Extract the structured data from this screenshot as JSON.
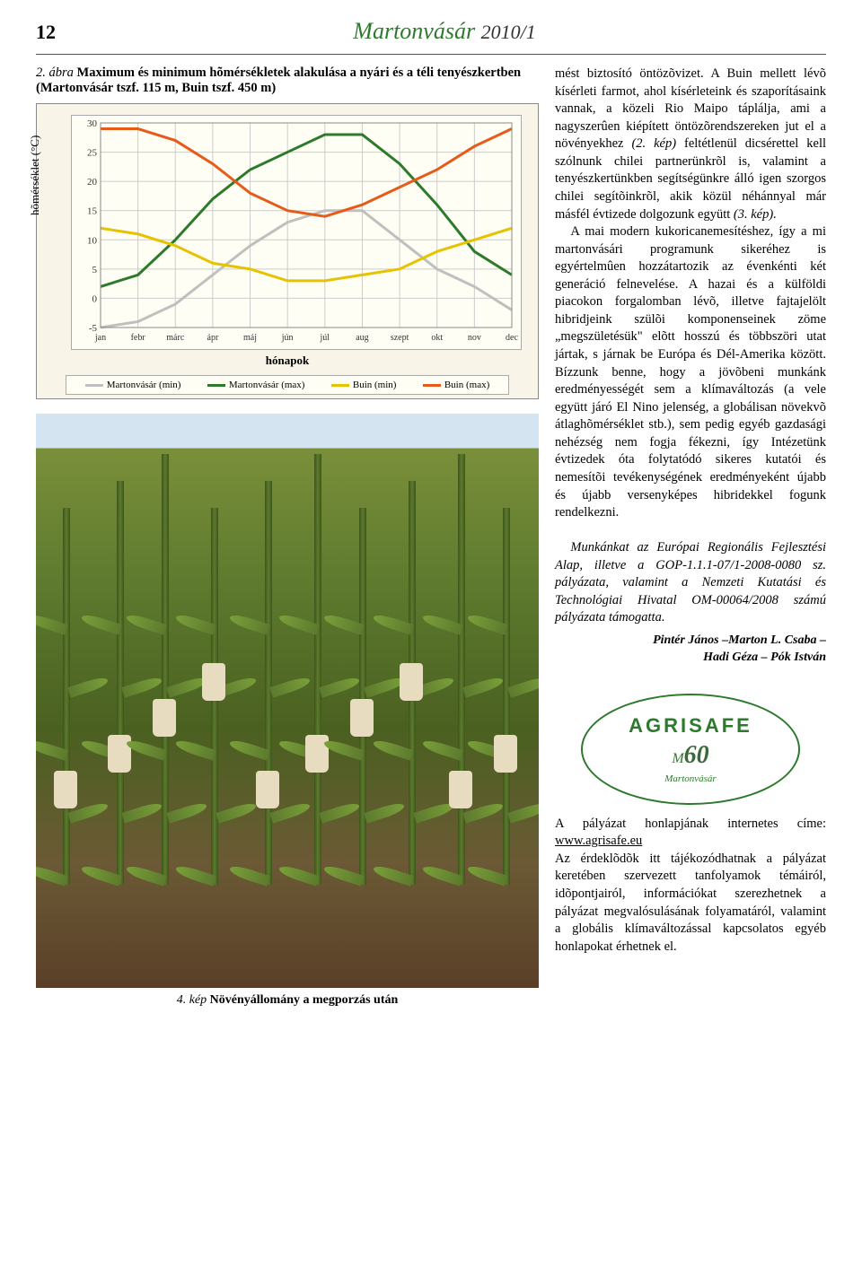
{
  "page_number": "12",
  "masthead": "Martonvásár",
  "masthead_year": "2010/1",
  "figure2": {
    "label_prefix": "2. ábra",
    "title_bold": "Maximum és minimum hõmérsékletek alakulása a nyári és a téli tenyészkertben (Martonvásár tszf. 115 m, Buin tszf. 450 m)",
    "ylabel": "hõmérséklet (°C)",
    "xlabel": "hónapok",
    "chart": {
      "type": "line",
      "background_color": "#f8f5e8",
      "plot_color": "#fffef4",
      "grid_color": "#cccccc",
      "ylim": [
        -5,
        30
      ],
      "ytick_step": 5,
      "yticks": [
        "-5",
        "0",
        "5",
        "10",
        "15",
        "20",
        "25",
        "30"
      ],
      "categories": [
        "jan",
        "febr",
        "márc",
        "ápr",
        "máj",
        "jún",
        "júl",
        "aug",
        "szept",
        "okt",
        "nov",
        "dec"
      ],
      "series": [
        {
          "name": "Martonvásár (min)",
          "color": "#bfbfbf",
          "width": 3,
          "values": [
            -5,
            -4,
            -1,
            4,
            9,
            13,
            15,
            15,
            10,
            5,
            2,
            -2
          ]
        },
        {
          "name": "Martonvásár (max)",
          "color": "#2d7a2d",
          "width": 3,
          "values": [
            2,
            4,
            10,
            17,
            22,
            25,
            28,
            28,
            23,
            16,
            8,
            4
          ]
        },
        {
          "name": "Buin (min)",
          "color": "#e6c200",
          "width": 3,
          "values": [
            12,
            11,
            9,
            6,
            5,
            3,
            3,
            4,
            5,
            8,
            10,
            12
          ]
        },
        {
          "name": "Buin (max)",
          "color": "#e65a1a",
          "width": 3,
          "values": [
            29,
            29,
            27,
            23,
            18,
            15,
            14,
            16,
            19,
            22,
            26,
            29
          ]
        }
      ],
      "title_fontsize": 14,
      "label_fontsize": 13
    }
  },
  "caption4": {
    "label": "4. kép",
    "text": "Növényállomány a megporzás után"
  },
  "body": {
    "p1": "mést biztosító öntözõvizet. A Buin mellett lévõ kísérleti farmot, ahol kísérleteink és szaporításaink vannak, a közeli Rio Maipo táplálja, ami a nagyszerûen kiépített öntözõrendszereken jut el a növényekhez ",
    "p1_ref": "(2. kép)",
    "p1b": " feltétlenül dicsérettel kell szólnunk chilei partnerünkrõl is, valamint a tenyészkertünkben segítségünkre álló igen szorgos chilei segítõinkrõl, akik közül néhánnyal már másfél évtizede dolgozunk együtt ",
    "p1_ref2": "(3. kép).",
    "p2": "A mai modern kukoricanemesítéshez, így a mi martonvásári programunk sikeréhez is egyértelmûen hozzátartozik az évenkénti két generáció felnevelése. A hazai és a külföldi piacokon forgalomban lévõ, illetve fajtajelölt hibridjeink szülõi komponenseinek zöme „megszületésük\" elõtt hosszú és többszöri utat jártak, s járnak be Európa és Dél-Amerika között. Bízzunk benne, hogy a jövõbeni munkánk eredményességét sem a klímaváltozás (a vele együtt járó El Nino jelenség, a globálisan növekvõ átlaghõmérséklet stb.), sem pedig egyéb gazdasági nehézség nem fogja fékezni, így Intézetünk évtizedek óta folytatódó sikeres kutatói és nemesítõi tevékenységének eredményeként újabb és újabb versenyképes hibridekkel fogunk rendelkezni.",
    "ack": "Munkánkat az Európai Regionális Fejlesztési Alap, illetve a GOP-1.1.1-07/1-2008-0080 sz. pályázata, valamint a Nemzeti Kutatási és Technológiai Hivatal OM-00064/2008 számú pályázata támogatta.",
    "authors1": "Pintér János –Marton L. Csaba –",
    "authors2": "Hadi Géza – Pók István"
  },
  "agrisafe": {
    "logo_text": "AGRISAFE",
    "logo_sub": "Martonvásár",
    "text1": "A pályázat honlapjának internetes címe: ",
    "url": "www.agrisafe.eu",
    "text2": "Az érdeklõdõk itt tájékozódhatnak a pályázat keretében szervezett tanfolyamok témáiról, idõpontjairól, információkat szerezhetnek a pályázat megvalósulásának folyamatáról, valamint a globális klímaváltozással kapcsolatos egyéb honlapokat érhetnek el."
  }
}
